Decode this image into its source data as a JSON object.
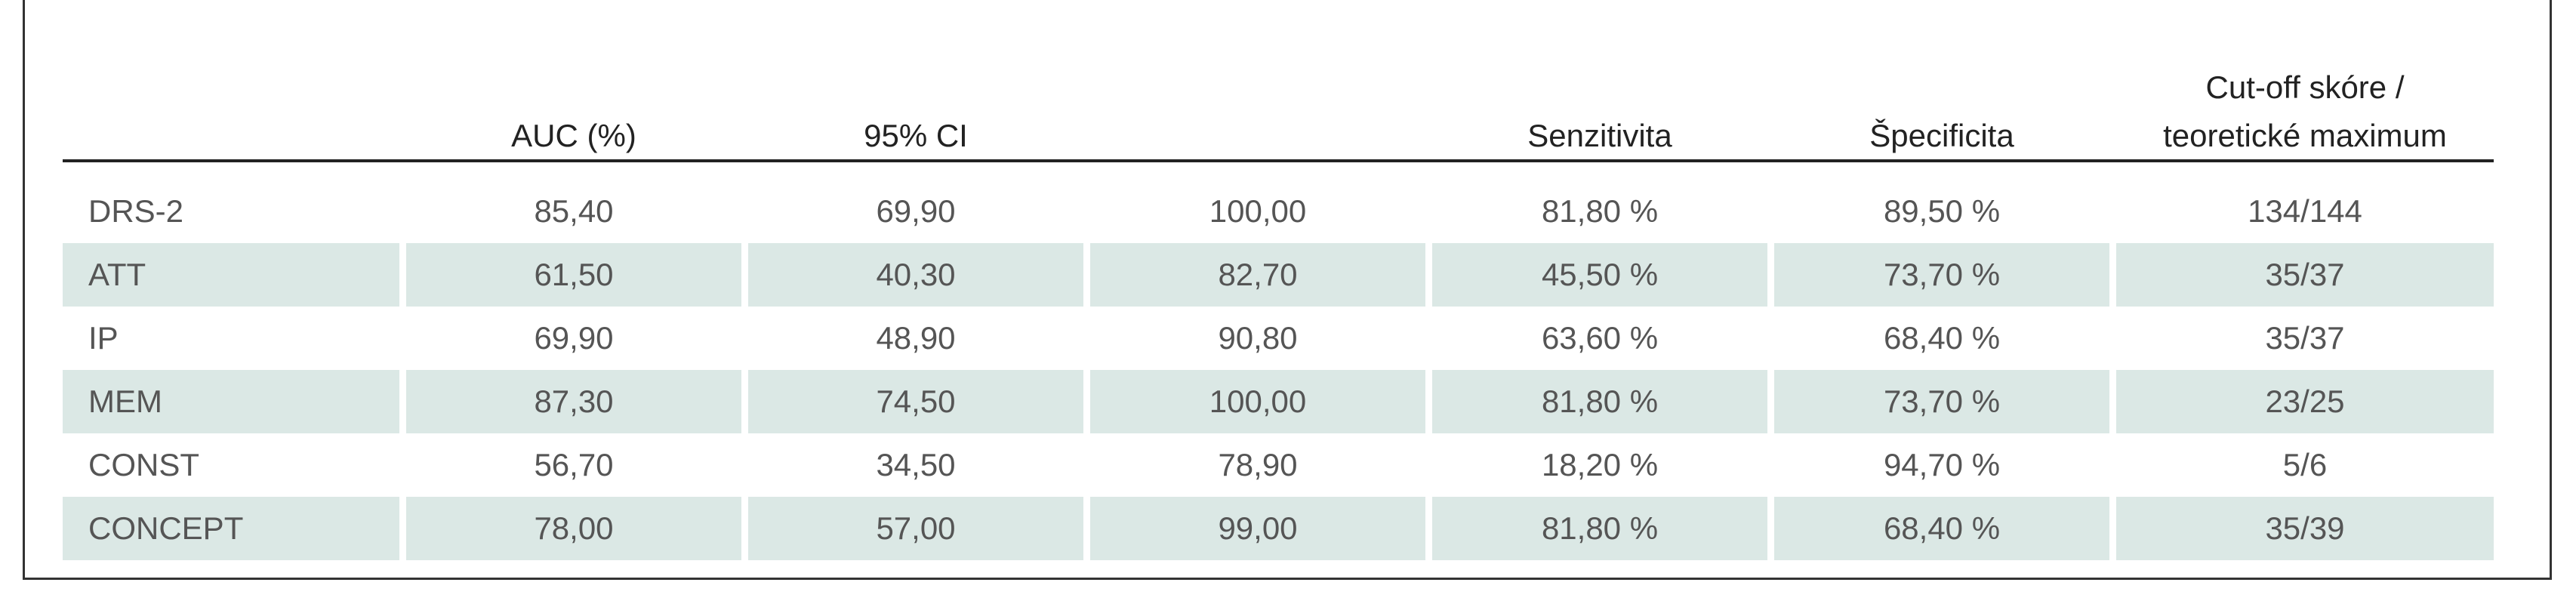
{
  "table": {
    "header": [
      "AUC (%)",
      "95% CI",
      "Senzitivita",
      "Špecificita",
      [
        "Cut-off skóre /",
        "teoretické maximum"
      ]
    ],
    "rows": [
      [
        "DRS-2",
        "85,40",
        "69,90",
        "100,00",
        "81,80 %",
        "89,50 %",
        "134/144"
      ],
      [
        "ATT",
        "61,50",
        "40,30",
        "82,70",
        "45,50 %",
        "73,70 %",
        "35/37"
      ],
      [
        "IP",
        "69,90",
        "48,90",
        "90,80",
        "63,60 %",
        "68,40 %",
        "35/37"
      ],
      [
        "MEM",
        "87,30",
        "74,50",
        "100,00",
        "81,80 %",
        "73,70 %",
        "23/25"
      ],
      [
        "CONST",
        "56,70",
        "34,50",
        "78,90",
        "18,20 %",
        "94,70 %",
        "5/6"
      ],
      [
        "CONCEPT",
        "78,00",
        "57,00",
        "99,00",
        "81,80 %",
        "68,40 %",
        "35/39"
      ]
    ]
  }
}
